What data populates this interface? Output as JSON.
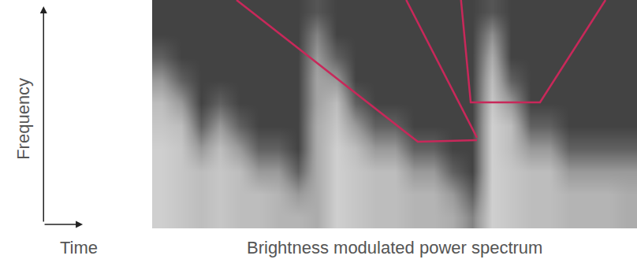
{
  "chart_data": {
    "type": "heatmap",
    "title": "Brightness modulated power spectrum",
    "xlabel": "Time",
    "ylabel": "Frequency",
    "xlim": [
      0,
      100
    ],
    "ylim": [
      0,
      100
    ],
    "zlim": [
      0,
      1
    ],
    "tick_labels": false,
    "grid": false,
    "cells": {
      "x": [
        2,
        6,
        10,
        14,
        18,
        22,
        26,
        30,
        34,
        38,
        42,
        46,
        50,
        54,
        58,
        62,
        66,
        70,
        74,
        78,
        82,
        86,
        90,
        94,
        98
      ],
      "y": [
        5,
        15,
        25,
        35,
        45,
        55,
        65,
        75,
        85,
        95
      ],
      "z": [
        [
          0.8,
          0.75,
          0.7,
          0.75,
          0.7,
          0.7,
          0.65,
          0.65,
          0.6,
          0.8,
          0.75,
          0.7,
          0.7,
          0.65,
          0.65,
          0.6,
          0.4,
          0.8,
          0.75,
          0.7,
          0.7,
          0.65,
          0.65,
          0.65,
          0.6
        ],
        [
          0.8,
          0.75,
          0.7,
          0.75,
          0.7,
          0.7,
          0.65,
          0.5,
          0.6,
          0.8,
          0.75,
          0.7,
          0.7,
          0.65,
          0.65,
          0.5,
          0.25,
          0.8,
          0.75,
          0.7,
          0.7,
          0.65,
          0.65,
          0.65,
          0.6
        ],
        [
          0.8,
          0.75,
          0.7,
          0.75,
          0.7,
          0.5,
          0.5,
          0.25,
          0.6,
          0.8,
          0.75,
          0.7,
          0.7,
          0.5,
          0.5,
          0.25,
          0.12,
          0.8,
          0.75,
          0.7,
          0.7,
          0.5,
          0.5,
          0.5,
          0.5
        ],
        [
          0.8,
          0.75,
          0.5,
          0.7,
          0.5,
          0.25,
          0.25,
          0.12,
          0.6,
          0.8,
          0.7,
          0.5,
          0.5,
          0.25,
          0.25,
          0.12,
          0.12,
          0.8,
          0.7,
          0.5,
          0.5,
          0.25,
          0.25,
          0.25,
          0.25
        ],
        [
          0.75,
          0.7,
          0.25,
          0.5,
          0.25,
          0.12,
          0.12,
          0.12,
          0.6,
          0.75,
          0.5,
          0.25,
          0.25,
          0.12,
          0.12,
          0.12,
          0.12,
          0.8,
          0.7,
          0.25,
          0.25,
          0.12,
          0.12,
          0.12,
          0.12
        ],
        [
          0.7,
          0.5,
          0.12,
          0.25,
          0.12,
          0.12,
          0.12,
          0.12,
          0.55,
          0.7,
          0.25,
          0.12,
          0.12,
          0.12,
          0.12,
          0.12,
          0.12,
          0.75,
          0.5,
          0.12,
          0.12,
          0.12,
          0.12,
          0.12,
          0.12
        ],
        [
          0.5,
          0.25,
          0.12,
          0.12,
          0.12,
          0.12,
          0.12,
          0.12,
          0.55,
          0.5,
          0.12,
          0.12,
          0.12,
          0.12,
          0.12,
          0.12,
          0.12,
          0.7,
          0.25,
          0.12,
          0.12,
          0.12,
          0.12,
          0.12,
          0.12
        ],
        [
          0.25,
          0.12,
          0.12,
          0.12,
          0.12,
          0.12,
          0.12,
          0.12,
          0.5,
          0.25,
          0.12,
          0.12,
          0.12,
          0.12,
          0.12,
          0.12,
          0.12,
          0.6,
          0.12,
          0.12,
          0.12,
          0.12,
          0.12,
          0.12,
          0.12
        ],
        [
          0.12,
          0.12,
          0.12,
          0.12,
          0.12,
          0.12,
          0.12,
          0.12,
          0.4,
          0.12,
          0.12,
          0.12,
          0.12,
          0.12,
          0.12,
          0.12,
          0.12,
          0.45,
          0.12,
          0.12,
          0.12,
          0.12,
          0.12,
          0.12,
          0.12
        ],
        [
          0.12,
          0.12,
          0.12,
          0.12,
          0.12,
          0.12,
          0.12,
          0.12,
          0.2,
          0.12,
          0.12,
          0.12,
          0.12,
          0.12,
          0.12,
          0.12,
          0.12,
          0.2,
          0.12,
          0.12,
          0.12,
          0.12,
          0.12,
          0.12,
          0.12
        ]
      ]
    },
    "series": [
      {
        "type": "line",
        "color": "#c8285a",
        "x": [
          17.4,
          54.8,
          67.0
        ],
        "values": [
          100,
          37.9,
          38.6
        ]
      },
      {
        "type": "line",
        "color": "#c8285a",
        "x": [
          52.4,
          67.0
        ],
        "values": [
          100,
          39.7
        ]
      },
      {
        "type": "line",
        "color": "#c8285a",
        "x": [
          63.7,
          65.7,
          80.0,
          93.5
        ],
        "values": [
          100,
          55.2,
          55.2,
          100
        ]
      }
    ]
  }
}
